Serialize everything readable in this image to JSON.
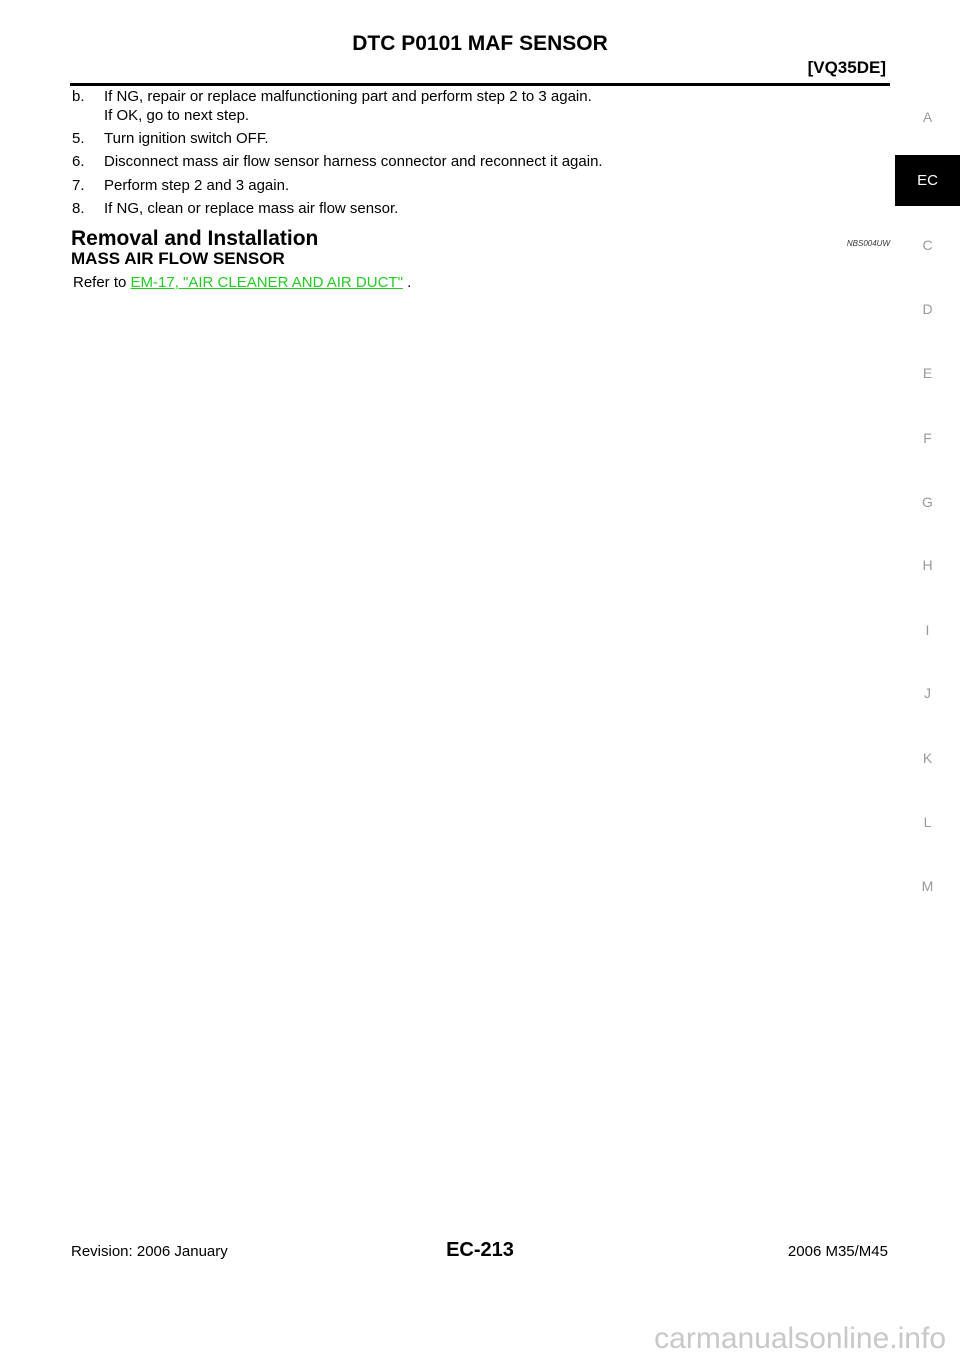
{
  "header": {
    "title": "DTC P0101 MAF SENSOR",
    "engine": "[VQ35DE]"
  },
  "steps": [
    {
      "num": "b.",
      "lines": [
        "If NG, repair or replace malfunctioning part and perform step 2 to 3 again.",
        "If OK, go to next step."
      ]
    },
    {
      "num": "5.",
      "lines": [
        "Turn ignition switch OFF."
      ]
    },
    {
      "num": "6.",
      "lines": [
        "Disconnect mass air flow sensor harness connector and reconnect it again."
      ]
    },
    {
      "num": "7.",
      "lines": [
        "Perform step 2 and 3 again."
      ]
    },
    {
      "num": "8.",
      "lines": [
        "If NG, clean or replace mass air flow sensor."
      ]
    }
  ],
  "section": {
    "title": "Removal and Installation",
    "code": "NBS004UW",
    "subtitle": "MASS AIR FLOW SENSOR",
    "refer_prefix": "Refer to ",
    "refer_link": "EM-17, \"AIR CLEANER AND AIR DUCT\"",
    "refer_suffix": " ."
  },
  "side_tabs": [
    "A",
    "EC",
    "C",
    "D",
    "E",
    "F",
    "G",
    "H",
    "I",
    "J",
    "K",
    "L",
    "M"
  ],
  "active_tab": "EC",
  "footer": {
    "revision": "Revision: 2006 January",
    "page": "EC-213",
    "model": "2006 M35/M45"
  },
  "watermark": "carmanualsonline.info",
  "colors": {
    "link": "#22cc22",
    "active_tab_bg": "#000000"
  }
}
